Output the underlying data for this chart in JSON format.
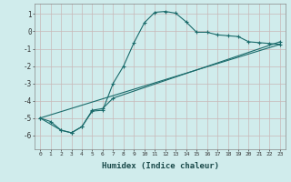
{
  "xlabel": "Humidex (Indice chaleur)",
  "background_color": "#d0ecec",
  "grid_color": "#c8dada",
  "line_color": "#1a6b6b",
  "xlim": [
    -0.5,
    23.5
  ],
  "ylim": [
    -6.8,
    1.6
  ],
  "yticks": [
    1,
    0,
    -1,
    -2,
    -3,
    -4,
    -5,
    -6
  ],
  "xticks": [
    0,
    1,
    2,
    3,
    4,
    5,
    6,
    7,
    8,
    9,
    10,
    11,
    12,
    13,
    14,
    15,
    16,
    17,
    18,
    19,
    20,
    21,
    22,
    23
  ],
  "series1_x": [
    0,
    1,
    2,
    3,
    4,
    5,
    6,
    7,
    8,
    9,
    10,
    11,
    12,
    13,
    14,
    15,
    16,
    17,
    18,
    19,
    20,
    21,
    22,
    23
  ],
  "series1_y": [
    -5.0,
    -5.2,
    -5.7,
    -5.85,
    -5.5,
    -4.6,
    -4.55,
    -3.0,
    -2.0,
    -0.65,
    0.5,
    1.1,
    1.15,
    1.05,
    0.55,
    -0.05,
    -0.05,
    -0.2,
    -0.25,
    -0.3,
    -0.6,
    -0.65,
    -0.7,
    -0.75
  ],
  "series2_x": [
    0,
    2,
    3,
    4,
    5,
    6,
    7,
    23
  ],
  "series2_y": [
    -5.0,
    -5.7,
    -5.85,
    -5.5,
    -4.55,
    -4.45,
    -3.85,
    -0.6
  ],
  "series3_x": [
    0,
    23
  ],
  "series3_y": [
    -5.0,
    -0.75
  ]
}
